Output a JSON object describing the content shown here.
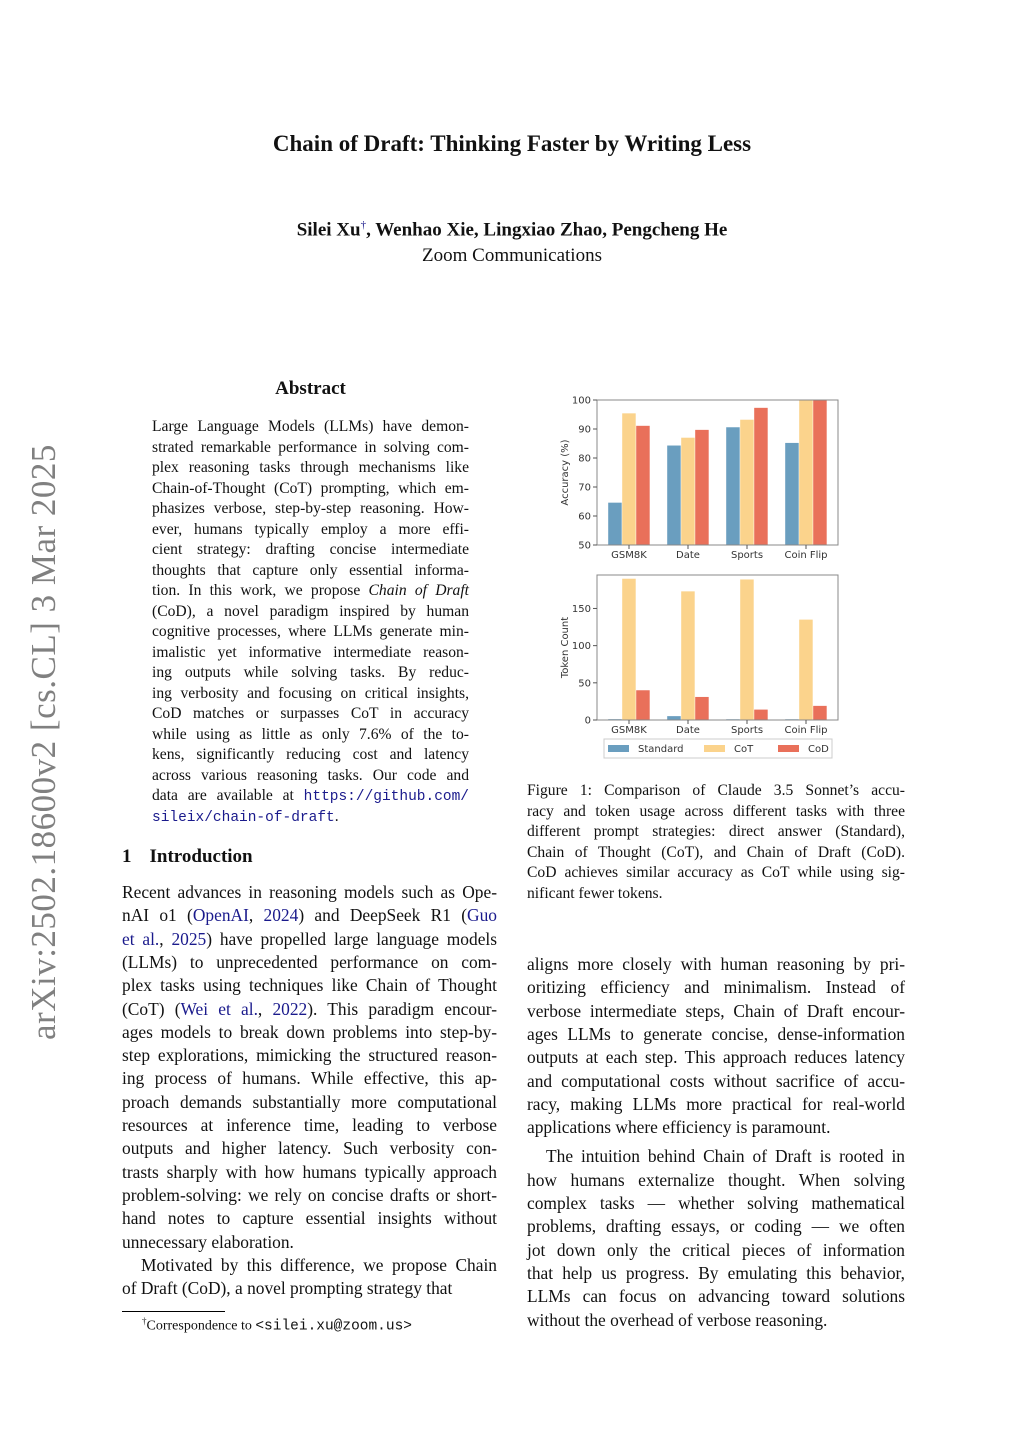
{
  "arxiv_id": "arXiv:2502.18600v2  [cs.CL]  3 Mar 2025",
  "title": "Chain of Draft: Thinking Faster by Writing Less",
  "authors": {
    "first": "Silei Xu",
    "mark": "†",
    "rest": ", Wenhao Xie, Lingxiao Zhao, Pengcheng He"
  },
  "affiliation": "Zoom Communications",
  "abstract": {
    "heading": "Abstract",
    "lines": [
      "Large Language Models (LLMs) have demon-",
      "strated remarkable performance in solving com-",
      "plex reasoning tasks through mechanisms like",
      "Chain-of-Thought (CoT) prompting, which em-",
      "phasizes verbose, step-by-step reasoning. How-",
      "ever, humans typically employ a more effi-",
      "cient strategy: drafting concise intermediate",
      "thoughts that capture only essential informa-",
      [
        {
          "t": "tion. In this work, we propose "
        },
        {
          "t": "Chain of Draft",
          "c": "it"
        }
      ],
      "(CoD), a novel paradigm inspired by human",
      "cognitive processes, where LLMs generate min-",
      "imalistic yet informative intermediate reason-",
      "ing outputs while solving tasks.  By reduc-",
      "ing verbosity and focusing on critical insights,",
      "CoD matches or surpasses CoT in accuracy",
      "while using as little as only 7.6% of the to-",
      "kens, significantly reducing cost and latency",
      "across various reasoning tasks. Our code and",
      [
        {
          "t": "data are available at "
        },
        {
          "t": "https://github.com/",
          "c": "mono link"
        }
      ],
      [
        {
          "t": "sileix/chain-of-draft",
          "c": "mono link"
        },
        {
          "t": "."
        }
      ]
    ]
  },
  "intro": {
    "number": "1",
    "heading": "Introduction",
    "left_lines": [
      "Recent advances in reasoning models such as Ope-",
      [
        {
          "t": "nAI o1 ("
        },
        {
          "t": "OpenAI",
          "c": "link"
        },
        {
          "t": ", "
        },
        {
          "t": "2024",
          "c": "link"
        },
        {
          "t": ") and DeepSeek R1 ("
        },
        {
          "t": "Guo",
          "c": "link"
        }
      ],
      [
        {
          "t": "et al.",
          "c": "link"
        },
        {
          "t": ", "
        },
        {
          "t": "2025",
          "c": "link"
        },
        {
          "t": ") have propelled large language models"
        }
      ],
      "(LLMs) to unprecedented performance on com-",
      "plex tasks using techniques like Chain of Thought",
      [
        {
          "t": "(CoT) ("
        },
        {
          "t": "Wei et al.",
          "c": "link"
        },
        {
          "t": ", "
        },
        {
          "t": "2022",
          "c": "link"
        },
        {
          "t": ").  This paradigm encour-"
        }
      ],
      "ages models to break down problems into step-by-",
      "step explorations, mimicking the structured reason-",
      "ing process of humans.  While effective, this ap-",
      "proach demands substantially more computational",
      "resources at inference time, leading to verbose",
      "outputs and higher latency.  Such verbosity con-",
      "trasts sharply with how humans typically approach",
      "problem-solving: we rely on concise drafts or short-",
      "hand notes to capture essential insights without",
      "unnecessary elaboration.",
      "Motivated by this difference, we propose Chain",
      "of Draft (CoD), a novel prompting strategy that"
    ],
    "right_lines": [
      "aligns more closely with human reasoning by pri-",
      "oritizing efficiency and minimalism.  Instead of",
      "verbose intermediate steps, Chain of Draft encour-",
      "ages LLMs to generate concise, dense-information",
      "outputs at each step. This approach reduces latency",
      "and computational costs without sacrifice of accu-",
      "racy, making LLMs more practical for real-world",
      "applications where efficiency is paramount.",
      "The intuition behind Chain of Draft is rooted in",
      "how humans externalize thought.  When solving",
      "complex tasks — whether solving mathematical",
      "problems, drafting essays, or coding — we often",
      "jot down only the critical pieces of information",
      "that help us progress. By emulating this behavior,",
      "LLMs can focus on advancing toward solutions",
      "without the overhead of verbose reasoning."
    ]
  },
  "footnote": {
    "mark": "†",
    "text": "Correspondence to ",
    "email": "<silei.xu@zoom.us>"
  },
  "figure_caption": {
    "lines": [
      "Figure 1:  Comparison of Claude 3.5 Sonnet’s accu-",
      "racy and token usage across different tasks with three",
      "different prompt strategies: direct answer (Standard),",
      "Chain of Thought (CoT), and Chain of Draft (CoD).",
      "CoD achieves similar accuracy as CoT while using sig-",
      "nificant fewer tokens."
    ]
  },
  "chart_data": [
    {
      "type": "bar",
      "categories": [
        "GSM8K",
        "Date",
        "Sports",
        "Coin Flip"
      ],
      "ylabel": "Accuracy (%)",
      "ylim": [
        50,
        100
      ],
      "yticks": [
        50,
        60,
        70,
        80,
        90,
        100
      ],
      "grid": false,
      "series": [
        {
          "name": "Standard",
          "color": "#6a9ebf",
          "values": [
            64.6,
            84.3,
            90.6,
            85.2
          ]
        },
        {
          "name": "CoT",
          "color": "#fbd38c",
          "values": [
            95.4,
            87.0,
            93.2,
            100.0
          ]
        },
        {
          "name": "CoD",
          "color": "#e9705a",
          "values": [
            91.1,
            89.7,
            97.3,
            100.0
          ]
        }
      ]
    },
    {
      "type": "bar",
      "categories": [
        "GSM8K",
        "Date",
        "Sports",
        "Coin Flip"
      ],
      "ylabel": "Token Count",
      "ylim": [
        0,
        195
      ],
      "yticks": [
        0,
        50,
        100,
        150
      ],
      "grid": false,
      "legend": "bottom",
      "series": [
        {
          "name": "Standard",
          "color": "#6a9ebf",
          "values": [
            1.1,
            5.2,
            1.0,
            1.0
          ]
        },
        {
          "name": "CoT",
          "color": "#fbd38c",
          "values": [
            190,
            173,
            189,
            135
          ]
        },
        {
          "name": "CoD",
          "color": "#e9705a",
          "values": [
            40,
            31,
            14,
            19
          ]
        }
      ]
    }
  ]
}
